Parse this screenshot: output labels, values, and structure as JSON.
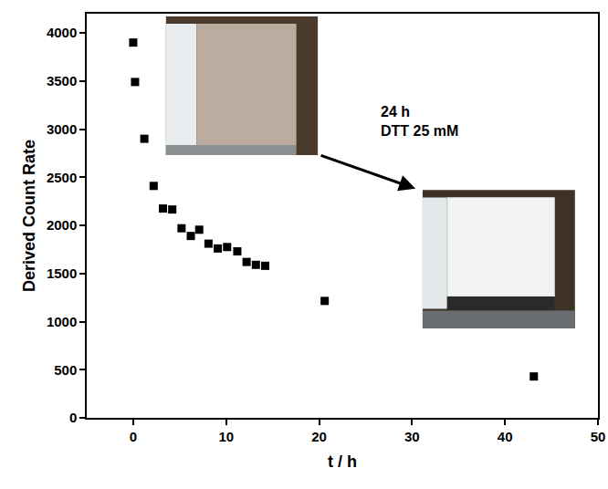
{
  "chart_data": {
    "type": "scatter",
    "x_label": "t / h",
    "y_label": "Derived Count Rate",
    "x": [
      0,
      0.2,
      1.2,
      2.2,
      3.2,
      4.2,
      5.2,
      6.2,
      7.1,
      8.1,
      9.1,
      10.1,
      11.2,
      12.2,
      13.2,
      14.2,
      20.6,
      43.1
    ],
    "values": [
      3900,
      3490,
      2900,
      2410,
      2175,
      2165,
      1970,
      1890,
      1955,
      1810,
      1760,
      1775,
      1730,
      1620,
      1590,
      1580,
      1215,
      430
    ],
    "color": "#000000",
    "marker": "square",
    "xlim": [
      -5,
      50
    ],
    "xticks": [
      0,
      10,
      20,
      30,
      40,
      50
    ],
    "ylim": [
      0,
      4200
    ],
    "yticks": [
      0,
      500,
      1000,
      1500,
      2000,
      2500,
      3000,
      3500,
      4000
    ],
    "grid": false,
    "annotations": [
      {
        "lines": [
          "24 h",
          "DTT 25 mM"
        ]
      }
    ]
  }
}
